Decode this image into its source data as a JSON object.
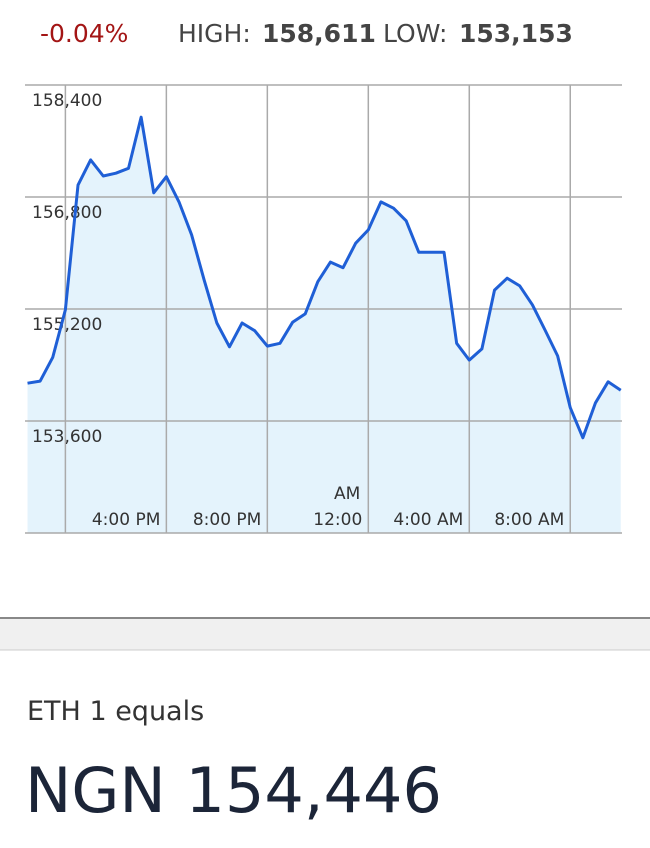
{
  "header": {
    "change": "-0.04%",
    "high_label": "HIGH:",
    "high_value": "158,611",
    "low_label": "LOW:",
    "low_value": "153,153"
  },
  "chart_data": {
    "type": "line",
    "line_color": "#1f5fd6",
    "area_color": "#e4f3fc",
    "grid": true,
    "x": [
      -1.5,
      -1,
      -0.5,
      0,
      0.5,
      1,
      1.5,
      2,
      2.5,
      3,
      3.5,
      4,
      4.5,
      5,
      5.5,
      6,
      6.5,
      7,
      7.5,
      8,
      8.5,
      9,
      9.5,
      10,
      10.5,
      11,
      11.5,
      12,
      12.5,
      13,
      13.5,
      14,
      14.5,
      15,
      15.5,
      16,
      16.5,
      17,
      17.5,
      18,
      18.5,
      19,
      19.5,
      20,
      20.5,
      21,
      21.5,
      22
    ],
    "values": [
      154140,
      154170,
      154510,
      155190,
      156970,
      157330,
      157100,
      157140,
      157210,
      157940,
      156860,
      157090,
      156730,
      156260,
      155610,
      155000,
      154660,
      155000,
      154890,
      154670,
      154710,
      155010,
      155130,
      155590,
      155870,
      155790,
      156140,
      156330,
      156730,
      156640,
      156460,
      156010,
      156010,
      156010,
      154710,
      154470,
      154630,
      155470,
      155640,
      155530,
      155260,
      154900,
      154530,
      153790,
      153360,
      153860,
      154160,
      154040
    ],
    "xlim": [
      -1.6,
      22.05
    ],
    "xticks": [
      {
        "value": 0,
        "label": null
      },
      {
        "value": 4,
        "label": "4:00 PM"
      },
      {
        "value": 8,
        "label": "8:00 PM"
      },
      {
        "value": 12,
        "label": "12:00",
        "label_top": "AM"
      },
      {
        "value": 16,
        "label": "4:00 AM"
      },
      {
        "value": 20,
        "label": "8:00 AM"
      }
    ],
    "ylim": [
      152000,
      158400
    ],
    "yticks": [
      {
        "value": 153600,
        "label": "153,600"
      },
      {
        "value": 155200,
        "label": "155,200"
      },
      {
        "value": 156800,
        "label": "156,800"
      },
      {
        "value": 158400,
        "label": "158,400"
      }
    ]
  },
  "conversion": {
    "label": "ETH 1 equals",
    "value": "NGN 154,446"
  }
}
